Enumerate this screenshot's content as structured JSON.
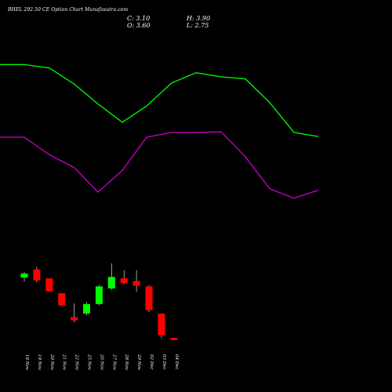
{
  "title": "BHEL 292.50 CE Option Chart Munafasutra.com",
  "ohlc": {
    "close_label": "C: 3.10",
    "high_label": "H: 3.90",
    "open_label": "O: 3.60",
    "low_label": "L: 2.75"
  },
  "colors": {
    "background": "#000000",
    "up": "#00ff00",
    "down": "#ff0000",
    "wick": "#ffffff",
    "upper_line": "#00ff00",
    "lower_line": "#cc00cc",
    "text": "#ffffff"
  },
  "chart_data": {
    "type": "candlestick",
    "categories": [
      "18 Nov",
      "19 Nov",
      "20 Nov",
      "21 Nov",
      "22 Nov",
      "25 Nov",
      "26 Nov",
      "27 Nov",
      "28 Nov",
      "29 Nov",
      "02 Dec",
      "03 Dec",
      "04 Dec"
    ],
    "candles": [
      {
        "open": 9.7,
        "high": 10.5,
        "low": 9.1,
        "close": 10.3
      },
      {
        "open": 10.9,
        "high": 11.3,
        "low": 9.0,
        "close": 9.3
      },
      {
        "open": 9.6,
        "high": 9.6,
        "low": 7.6,
        "close": 7.7
      },
      {
        "open": 7.4,
        "high": 7.4,
        "low": 5.5,
        "close": 5.6
      },
      {
        "open": 3.9,
        "high": 5.9,
        "low": 3.1,
        "close": 3.4
      },
      {
        "open": 4.4,
        "high": 6.1,
        "low": 4.1,
        "close": 5.8
      },
      {
        "open": 5.8,
        "high": 8.6,
        "low": 5.6,
        "close": 8.4
      },
      {
        "open": 8.1,
        "high": 11.8,
        "low": 7.9,
        "close": 9.8
      },
      {
        "open": 9.6,
        "high": 10.8,
        "low": 8.7,
        "close": 8.9
      },
      {
        "open": 9.2,
        "high": 10.8,
        "low": 7.6,
        "close": 8.5
      },
      {
        "open": 8.4,
        "high": 8.6,
        "low": 4.6,
        "close": 4.9
      },
      {
        "open": 4.4,
        "high": 4.4,
        "low": 0.8,
        "close": 1.2
      },
      {
        "open": 0.8,
        "high": 0.8,
        "low": 0.4,
        "close": 0.5
      }
    ],
    "overlay_series": [
      {
        "color": "#00ff00",
        "values": [
          41.1,
          41.1,
          40.6,
          38.2,
          35.3,
          32.6,
          35.0,
          38.4,
          39.9,
          39.3,
          39.0,
          35.5,
          31.1,
          30.5
        ]
      },
      {
        "color": "#cc00cc",
        "values": [
          30.4,
          30.4,
          27.8,
          25.9,
          22.3,
          25.5,
          30.4,
          31.1,
          31.1,
          31.2,
          27.5,
          22.8,
          21.4,
          22.6
        ]
      }
    ],
    "ylim": [
      0,
      46
    ],
    "grid": false,
    "legend": "none"
  }
}
